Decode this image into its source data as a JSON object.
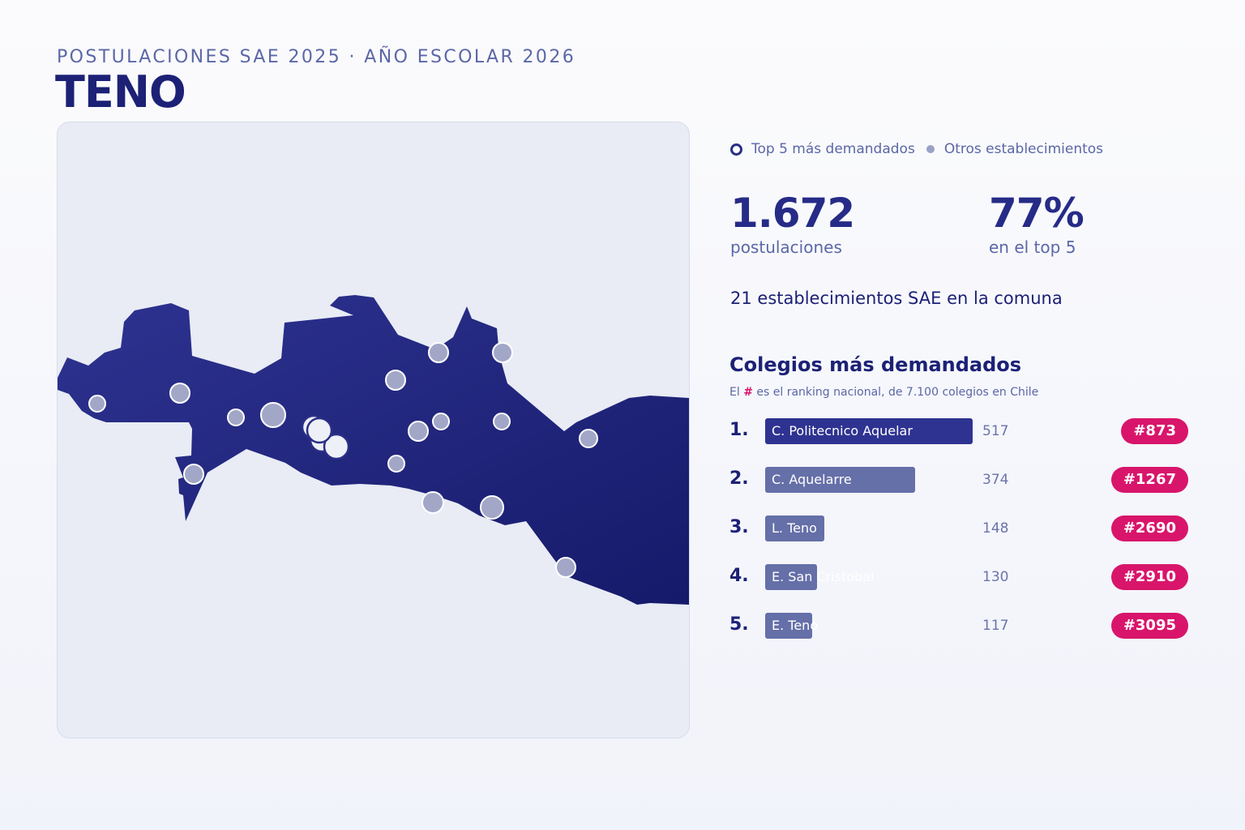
{
  "header": {
    "kicker": "POSTULACIONES SAE 2025 · AÑO ESCOLAR 2026",
    "title": "TENO"
  },
  "legend": {
    "top5": "Top 5 más demandados",
    "others": "Otros establecimientos"
  },
  "stats": [
    {
      "value": "1.672",
      "label": "postulaciones"
    },
    {
      "value": "77%",
      "label": "en el top 5"
    }
  ],
  "establishments": "21 establecimientos SAE en la comuna",
  "ranking": {
    "title": "Colegios más demandados",
    "subtitle_prefix": "El",
    "subtitle_hash": "#",
    "subtitle_suffix": "es el ranking nacional, de 7.100 colegios en Chile",
    "max_value": 517,
    "rows": [
      {
        "pos": "1.",
        "name": "C. Politecnico Aquelar",
        "value": 517,
        "rank": "#873"
      },
      {
        "pos": "2.",
        "name": "C. Aquelarre",
        "value": 374,
        "rank": "#1267"
      },
      {
        "pos": "3.",
        "name": "L. Teno",
        "value": 148,
        "rank": "#2690"
      },
      {
        "pos": "4.",
        "name": "E. San Cristobal",
        "value": 130,
        "rank": "#2910"
      },
      {
        "pos": "5.",
        "name": "E. Teno",
        "value": 117,
        "rank": "#3095"
      }
    ]
  },
  "colors": {
    "accent": "#1c2176",
    "map_fill": "#262b87",
    "marker": "#a2a7c8",
    "badge": "#d8156b"
  }
}
